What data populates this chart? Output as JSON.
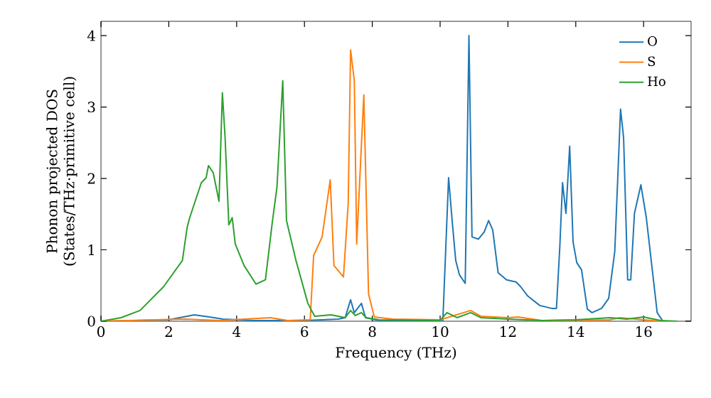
{
  "chart_data": {
    "type": "line",
    "xlabel": "Frequency (THz)",
    "ylabel": "Phonon projected DOS\n(States/THz·primitive cell)",
    "xlim": [
      0,
      17.4
    ],
    "ylim": [
      0,
      4.2
    ],
    "xticks": [
      0,
      2,
      4,
      6,
      8,
      10,
      12,
      14,
      16
    ],
    "yticks": [
      0,
      1,
      2,
      3,
      4
    ],
    "legend": "top right",
    "grid": false,
    "series": [
      {
        "name": "O",
        "color": "#1f77b4",
        "x": [
          0,
          2.0,
          2.54,
          2.75,
          3.2,
          3.6,
          4.5,
          6.0,
          7.0,
          7.2,
          7.36,
          7.47,
          7.68,
          7.8,
          8.2,
          10.0,
          10.08,
          10.25,
          10.36,
          10.46,
          10.57,
          10.74,
          10.85,
          10.94,
          11.13,
          11.3,
          11.43,
          11.55,
          11.71,
          11.96,
          12.24,
          12.38,
          12.59,
          12.94,
          13.29,
          13.43,
          13.53,
          13.61,
          13.71,
          13.82,
          13.92,
          14.03,
          14.17,
          14.34,
          14.48,
          14.76,
          14.97,
          15.15,
          15.32,
          15.41,
          15.53,
          15.62,
          15.73,
          15.92,
          16.08,
          16.4,
          16.57
        ],
        "values": [
          0,
          0.02,
          0.07,
          0.09,
          0.06,
          0.03,
          0.01,
          0.01,
          0.03,
          0.05,
          0.3,
          0.12,
          0.25,
          0.05,
          0.01,
          0,
          0,
          2.01,
          1.38,
          0.85,
          0.65,
          0.53,
          4.0,
          1.18,
          1.15,
          1.25,
          1.41,
          1.28,
          0.68,
          0.58,
          0.55,
          0.48,
          0.35,
          0.22,
          0.18,
          0.18,
          1.05,
          1.94,
          1.51,
          2.45,
          1.11,
          0.82,
          0.72,
          0.17,
          0.12,
          0.18,
          0.32,
          0.98,
          2.97,
          2.57,
          0.58,
          0.58,
          1.51,
          1.91,
          1.45,
          0.12,
          0
        ]
      },
      {
        "name": "S",
        "color": "#ff7f0e",
        "x": [
          0,
          2.5,
          3.5,
          5.0,
          5.5,
          6.17,
          6.27,
          6.52,
          6.76,
          6.87,
          7.15,
          7.29,
          7.36,
          7.47,
          7.54,
          7.75,
          7.89,
          8.06,
          8.6,
          10.0,
          10.9,
          11.2,
          12.0,
          12.3,
          13.0,
          15.0,
          15.3,
          16.0,
          16.5
        ],
        "values": [
          0,
          0.03,
          0.01,
          0.05,
          0.01,
          0.02,
          0.92,
          1.18,
          1.98,
          0.78,
          0.62,
          1.65,
          3.8,
          3.37,
          1.08,
          3.17,
          0.38,
          0.06,
          0.03,
          0.02,
          0.15,
          0.07,
          0.05,
          0.06,
          0.01,
          0.02,
          0.05,
          0.02,
          0
        ]
      },
      {
        "name": "Ho",
        "color": "#2ca02c",
        "x": [
          0,
          0.59,
          1.15,
          1.84,
          2.4,
          2.54,
          2.61,
          2.96,
          3.1,
          3.17,
          3.31,
          3.48,
          3.58,
          3.66,
          3.77,
          3.87,
          3.96,
          4.22,
          4.57,
          4.85,
          5.05,
          5.19,
          5.36,
          5.47,
          5.75,
          6.1,
          6.3,
          6.79,
          7.2,
          7.36,
          7.5,
          7.68,
          7.82,
          8.2,
          10.0,
          10.2,
          10.5,
          10.9,
          11.2,
          12.0,
          13.0,
          14.0,
          15.0,
          15.5,
          16.0,
          16.5,
          17.0
        ],
        "values": [
          0,
          0.05,
          0.15,
          0.48,
          0.85,
          1.31,
          1.44,
          1.94,
          2.01,
          2.18,
          2.08,
          1.68,
          3.2,
          2.57,
          1.35,
          1.45,
          1.08,
          0.78,
          0.52,
          0.58,
          1.38,
          1.88,
          3.37,
          1.41,
          0.85,
          0.25,
          0.07,
          0.09,
          0.05,
          0.15,
          0.08,
          0.12,
          0.05,
          0.02,
          0.01,
          0.12,
          0.05,
          0.12,
          0.05,
          0.03,
          0.01,
          0.02,
          0.05,
          0.03,
          0.06,
          0.01,
          0
        ]
      }
    ]
  }
}
